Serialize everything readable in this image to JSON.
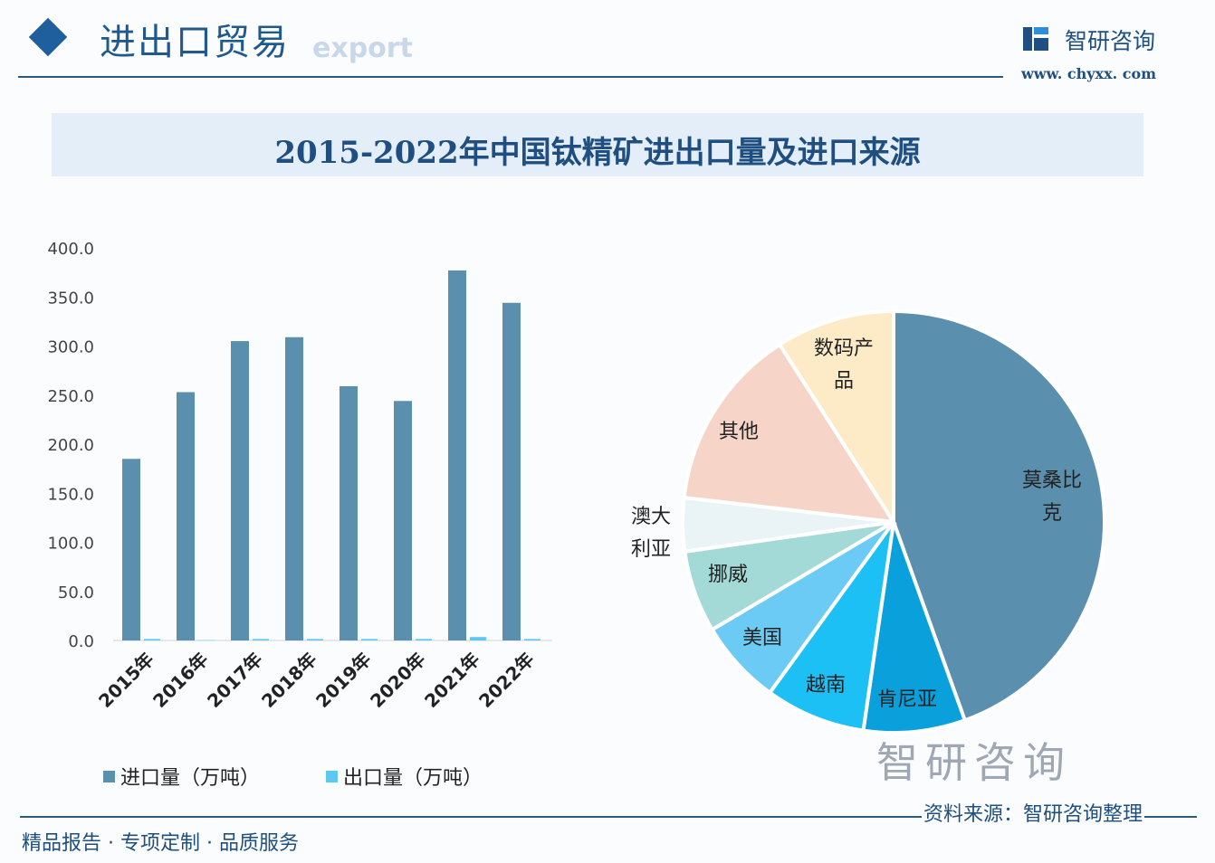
{
  "header": {
    "section_title": "进出口贸易",
    "section_subtitle": "export",
    "logo_text": "智研咨询",
    "logo_url": "www. chyxx. com"
  },
  "chart_title": "2015-2022年中国钛精矿进出口量及进口来源",
  "chart_data": [
    {
      "type": "bar",
      "categories": [
        "2015年",
        "2016年",
        "2017年",
        "2018年",
        "2019年",
        "2020年",
        "2021年",
        "2022年"
      ],
      "series": [
        {
          "name": "进口量（万吨）",
          "color": "#5a8fae",
          "values": [
            185,
            253,
            305,
            309,
            259,
            244,
            377,
            344
          ]
        },
        {
          "name": "出口量（万吨）",
          "color": "#5fc8f0",
          "values": [
            1.5,
            0.3,
            1.5,
            1.5,
            1.5,
            1.5,
            3.5,
            1.5
          ]
        }
      ],
      "ylim": [
        0,
        400
      ],
      "yticks": [
        "0.0",
        "50.0",
        "100.0",
        "150.0",
        "200.0",
        "250.0",
        "300.0",
        "350.0",
        "400.0"
      ],
      "grid": false,
      "legend": "bottom"
    },
    {
      "type": "pie",
      "unit": "%",
      "slices": [
        {
          "label": "莫桑比克",
          "value": 44.6,
          "color": "#5b8fae"
        },
        {
          "label": "肯尼亚",
          "value": 7.8,
          "color": "#0aa0dc"
        },
        {
          "label": "越南",
          "value": 7.7,
          "color": "#1cc0f5"
        },
        {
          "label": "美国",
          "value": 6.5,
          "color": "#6ccbf5"
        },
        {
          "label": "挪威",
          "value": 6.3,
          "color": "#a3d9d6"
        },
        {
          "label": "澳大利亚",
          "value": 4.1,
          "color": "#eaf4f7"
        },
        {
          "label": "其他",
          "value": 14.1,
          "color": "#f7d4c8"
        },
        {
          "label": "数码产品",
          "value": 9.1,
          "color": "#fdebc8"
        }
      ]
    }
  ],
  "footer": {
    "tagline": "精品报告 · 专项定制 · 品质服务",
    "source": "资料来源：智研咨询整理",
    "watermark": "智研咨询"
  }
}
